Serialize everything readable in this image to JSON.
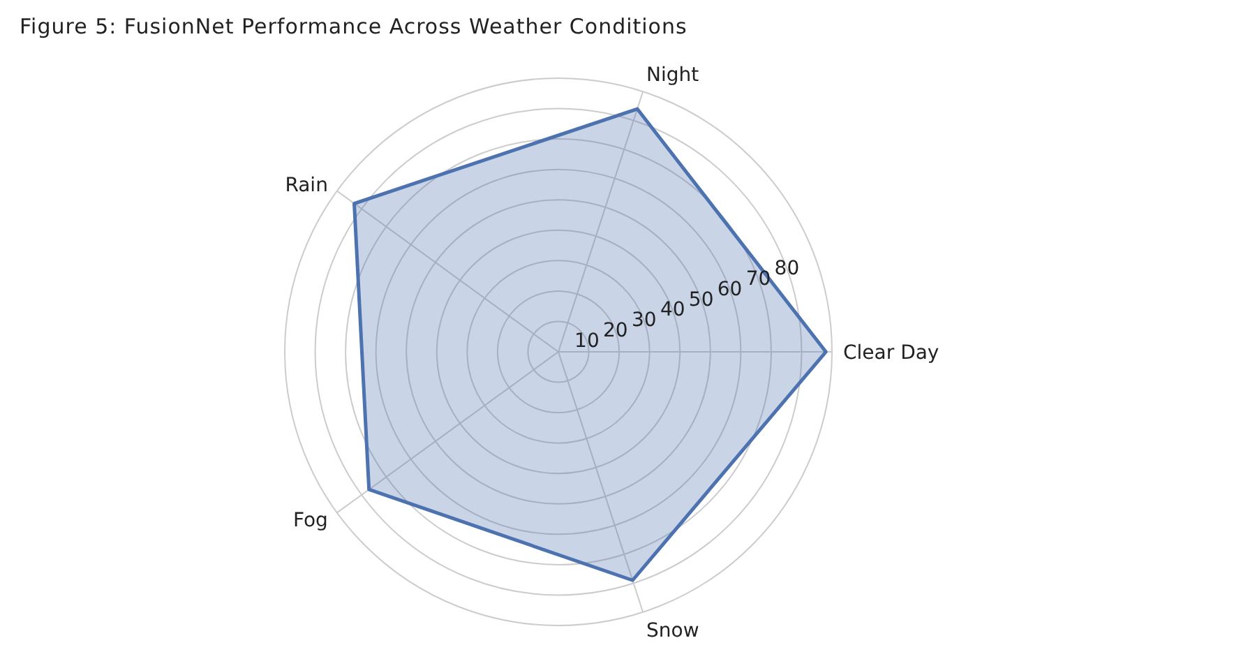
{
  "chart_data": {
    "type": "radar",
    "title": "Figure 5: FusionNet Performance Across Weather Conditions",
    "categories": [
      "Night",
      "Clear Day",
      "Snow",
      "Fog",
      "Rain"
    ],
    "series": [
      {
        "color": "#4c72b0",
        "values": [
          84,
          88,
          79,
          77,
          83
        ]
      }
    ],
    "ylim": [
      0,
      90
    ],
    "yticks": [
      10,
      20,
      30,
      40,
      50,
      60,
      70,
      80
    ],
    "grid": true,
    "legend": false
  }
}
